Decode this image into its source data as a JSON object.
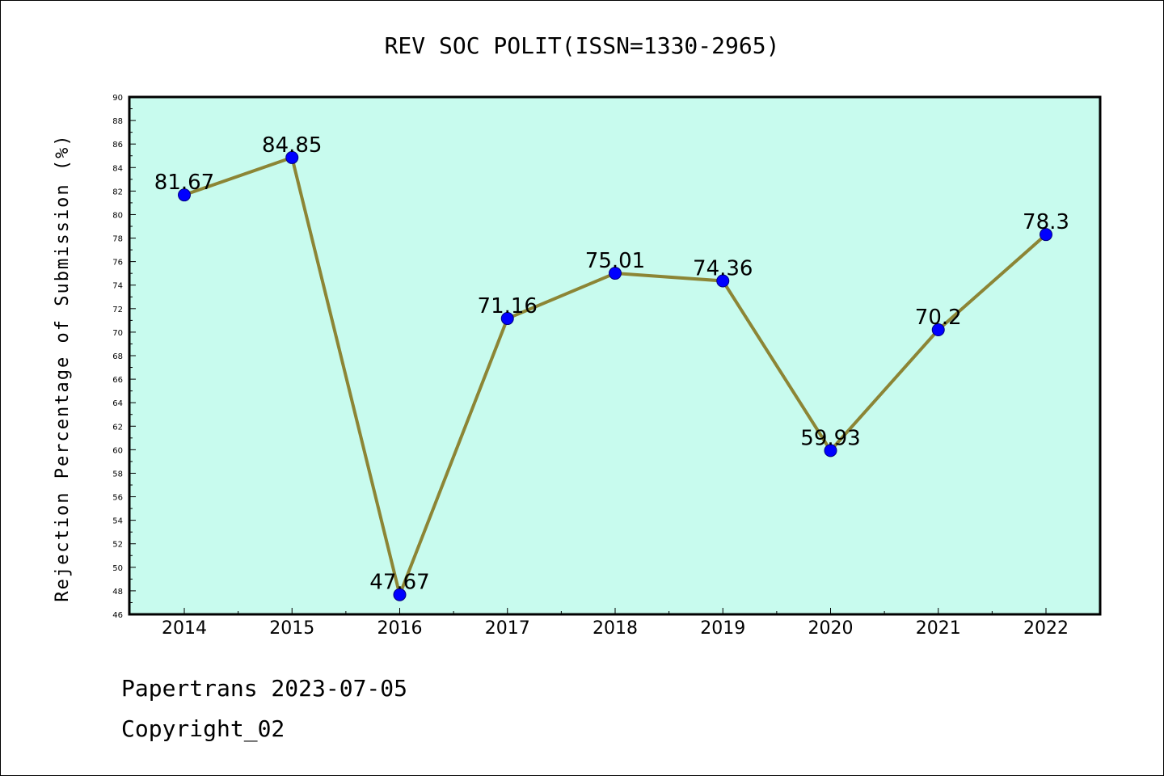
{
  "colors": {
    "plot_background": "#c8fbee",
    "line": "#8c8535",
    "marker": "#0000ff",
    "marker_edge": "#000080"
  },
  "footer": {
    "line1": "Papertrans 2023-07-05",
    "line2": "Copyright_02"
  },
  "chart_data": {
    "type": "line",
    "title": "REV SOC POLIT(ISSN=1330-2965)",
    "xlabel": "",
    "ylabel": "Rejection Percentage of Submission (%)",
    "x": [
      "2014",
      "2015",
      "2016",
      "2017",
      "2018",
      "2019",
      "2020",
      "2021",
      "2022"
    ],
    "series": [
      {
        "values": [
          81.67,
          84.85,
          47.67,
          71.16,
          75.01,
          74.36,
          59.93,
          70.2,
          78.3
        ],
        "labels": [
          "81.67",
          "84.85",
          "47.67",
          "71.16",
          "75.01",
          "74.36",
          "59.93",
          "70.2",
          "78.3"
        ]
      }
    ],
    "ylim": [
      46,
      90
    ],
    "yticks": [
      46,
      48,
      50,
      52,
      54,
      56,
      58,
      60,
      62,
      64,
      66,
      68,
      70,
      72,
      74,
      76,
      78,
      80,
      82,
      84,
      86,
      88,
      90
    ],
    "grid": false,
    "legend": "none"
  }
}
